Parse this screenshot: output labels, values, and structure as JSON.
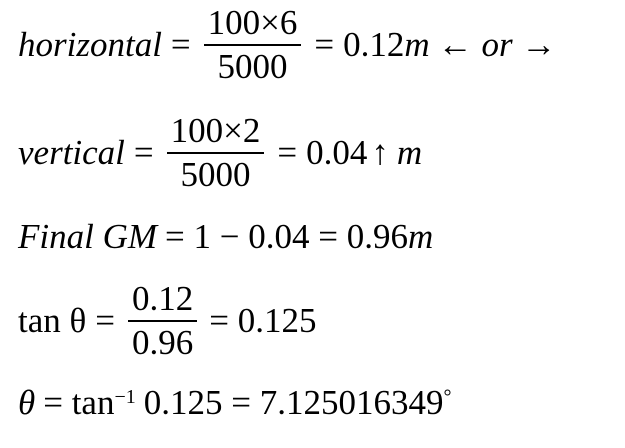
{
  "equations": {
    "line1": {
      "lhs": "horizontal",
      "eq": "=",
      "numerator": "100×6",
      "denominator": "5000",
      "eq2": "=",
      "result": "0.12",
      "unit": "m",
      "arrows": "← or →"
    },
    "line2": {
      "lhs": "vertical",
      "eq": "=",
      "numerator": "100×2",
      "denominator": "5000",
      "eq2": "=",
      "result": "0.04",
      "arrow": "↑",
      "unit": "m"
    },
    "line3": {
      "lhs": "Final GM",
      "rhs": "= 1 − 0.04 = 0.96",
      "unit": "m"
    },
    "line4": {
      "lhs": "tan θ",
      "eq": "=",
      "numerator": "0.12",
      "denominator": "0.96",
      "result": "= 0.125"
    },
    "line5": {
      "theta": "θ",
      "rhs": "= tan",
      "exponent": "−1",
      "rest": "0.125 = 7.125016349",
      "degree": "°"
    }
  }
}
